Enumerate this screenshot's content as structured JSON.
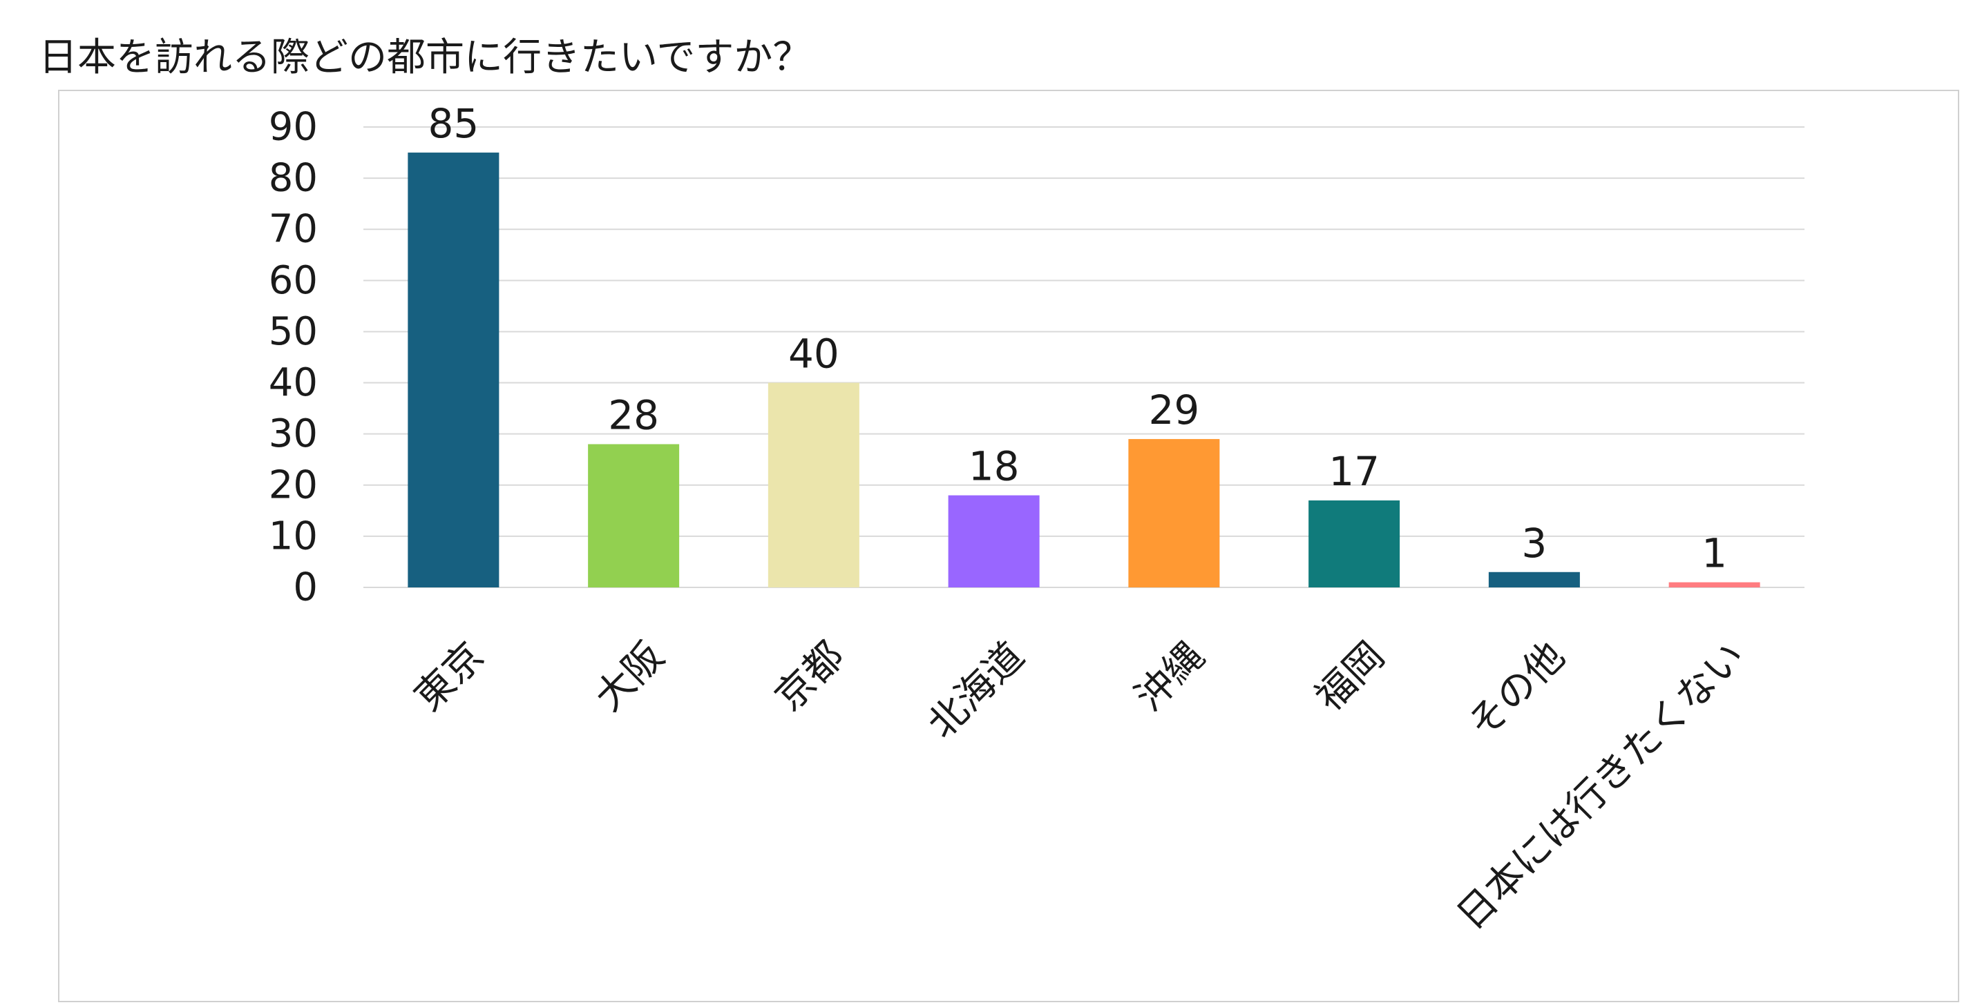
{
  "title": "日本を訪れる際どの都市に行きたいですか？",
  "chart_data": {
    "type": "bar",
    "title": "日本を訪れる際どの都市に行きたいですか？",
    "categories": [
      "東京",
      "大阪",
      "京都",
      "北海道",
      "沖縄",
      "福岡",
      "その他",
      "日本には行きたくない"
    ],
    "values": [
      85,
      28,
      40,
      18,
      29,
      17,
      3,
      1
    ],
    "colors": [
      "#176080",
      "#92d050",
      "#ebe5ac",
      "#9966ff",
      "#ff9933",
      "#107b7b",
      "#176080",
      "#ff7c80"
    ],
    "ylim": [
      0,
      90
    ],
    "yticks": [
      0,
      10,
      20,
      30,
      40,
      50,
      60,
      70,
      80,
      90
    ],
    "grid": true,
    "legend": "none",
    "data_labels": true
  }
}
